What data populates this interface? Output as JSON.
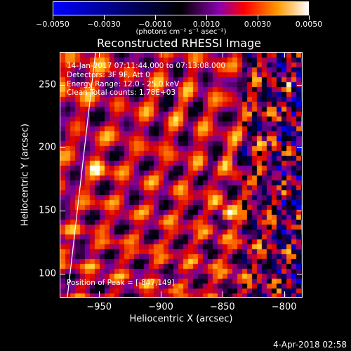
{
  "colorbar": {
    "tick_labels": [
      "−0.0050",
      "−0.0030",
      "−0.0010",
      "0.0010",
      "0.0030",
      "0.0050"
    ],
    "tick_values": [
      -0.005,
      -0.003,
      -0.001,
      0.001,
      0.003,
      0.005
    ],
    "range": [
      -0.005,
      0.005
    ],
    "units": "(photons cm⁻² s⁻¹ asec⁻²)",
    "colors": [
      "#0000ff",
      "#000000",
      "#8a00b0",
      "#ff0000",
      "#ff9a00",
      "#ffffff"
    ]
  },
  "title": "Reconstructed RHESSI Image",
  "info": {
    "time_range": "14-Jan-2017 07:11:44.000 to 07:13:08.000",
    "detectors": "Detectors: 3F 9F, Att 0",
    "energy": "Energy Range: 12.0 - 25.0 keV",
    "clean": "Clean     Total counts: 1.78E+03",
    "peak": "Position of Peak = [-847,149]"
  },
  "axes": {
    "xlabel": "Heliocentric X (arcsec)",
    "ylabel": "Heliocentric Y (arcsec)",
    "xlim": [
      -982,
      -785
    ],
    "ylim": [
      81,
      276
    ],
    "xticks": [
      -950,
      -900,
      -850,
      -800
    ],
    "xtick_labels": [
      "−950",
      "−900",
      "−850",
      "−800"
    ],
    "yticks": [
      100,
      150,
      200,
      250
    ],
    "ytick_labels": [
      "100",
      "150",
      "200",
      "250"
    ]
  },
  "peak_xy": [
    -847,
    149
  ],
  "datestamp": "4-Apr-2018 02:58"
}
